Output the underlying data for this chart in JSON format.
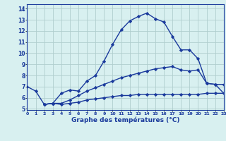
{
  "line1_x": [
    0,
    1,
    2,
    3,
    4,
    5,
    6,
    7,
    8,
    9,
    10,
    11,
    12,
    13,
    14,
    15,
    16,
    17,
    18,
    19,
    20,
    21,
    22,
    23
  ],
  "line1_y": [
    7.0,
    6.6,
    5.4,
    5.5,
    6.4,
    6.7,
    6.6,
    7.5,
    8.0,
    9.3,
    10.8,
    12.1,
    12.9,
    13.3,
    13.6,
    13.1,
    12.8,
    11.5,
    10.3,
    10.3,
    9.5,
    7.3,
    7.2,
    6.4
  ],
  "line2_x": [
    2,
    3,
    4,
    5,
    6,
    7,
    8,
    9,
    10,
    11,
    12,
    13,
    14,
    15,
    16,
    17,
    18,
    19,
    20,
    21,
    22,
    23
  ],
  "line2_y": [
    5.4,
    5.5,
    5.5,
    5.8,
    6.2,
    6.6,
    6.9,
    7.2,
    7.5,
    7.8,
    8.0,
    8.2,
    8.4,
    8.6,
    8.7,
    8.8,
    8.5,
    8.4,
    8.5,
    7.3,
    7.2,
    7.2
  ],
  "line3_x": [
    2,
    3,
    4,
    5,
    6,
    7,
    8,
    9,
    10,
    11,
    12,
    13,
    14,
    15,
    16,
    17,
    18,
    19,
    20,
    21,
    22,
    23
  ],
  "line3_y": [
    5.4,
    5.5,
    5.4,
    5.5,
    5.6,
    5.8,
    5.9,
    6.0,
    6.1,
    6.2,
    6.2,
    6.3,
    6.3,
    6.3,
    6.3,
    6.3,
    6.3,
    6.3,
    6.3,
    6.4,
    6.4,
    6.4
  ],
  "line_color": "#1a3a9c",
  "bg_color": "#d8f0f0",
  "grid_color": "#b0cece",
  "xlabel": "Graphe des températures (°C)",
  "ylabel_ticks": [
    5,
    6,
    7,
    8,
    9,
    10,
    11,
    12,
    13,
    14
  ],
  "xlim": [
    0,
    23
  ],
  "ylim": [
    4.9,
    14.4
  ],
  "xticks": [
    0,
    1,
    2,
    3,
    4,
    5,
    6,
    7,
    8,
    9,
    10,
    11,
    12,
    13,
    14,
    15,
    16,
    17,
    18,
    19,
    20,
    21,
    22,
    23
  ],
  "marker": "D",
  "markersize": 2.2,
  "linewidth": 1.0
}
